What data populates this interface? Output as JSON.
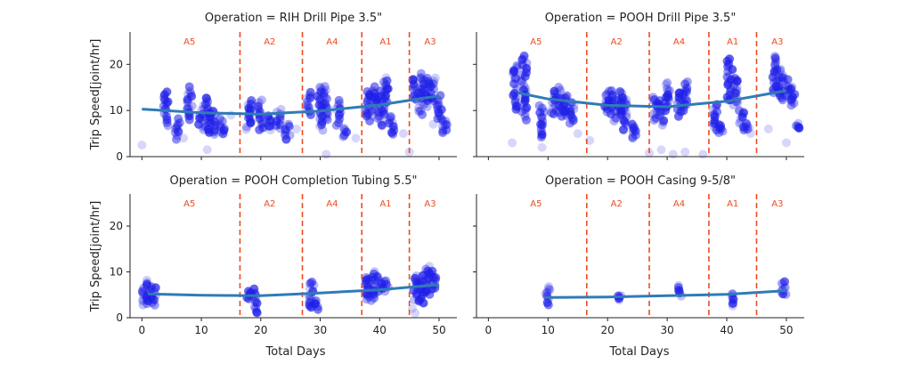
{
  "figure": {
    "ylabel": "Trip Speed[joint/hr]",
    "xlabel": "Total Days"
  },
  "chart_data": [
    {
      "type": "scatter",
      "title": "Operation = RIH Drill Pipe 3.5\"",
      "xlim": [
        -2,
        53
      ],
      "ylim": [
        0,
        27
      ],
      "xticks": [
        0,
        10,
        20,
        30,
        40,
        50
      ],
      "yticks": [
        0,
        10,
        20
      ],
      "regions": [
        {
          "label": "A5",
          "x": 8
        },
        {
          "label": "A2",
          "x": 21.5
        },
        {
          "label": "A4",
          "x": 32
        },
        {
          "label": "A1",
          "x": 41
        },
        {
          "label": "A3",
          "x": 48.5
        }
      ],
      "dividers": [
        16.5,
        27,
        37,
        45
      ],
      "trend": [
        [
          0,
          10.3
        ],
        [
          10,
          9.5
        ],
        [
          20,
          9.2
        ],
        [
          30,
          9.9
        ],
        [
          40,
          11.2
        ],
        [
          50,
          13.2
        ]
      ],
      "clusters": [
        {
          "x": 4,
          "ymin": 7,
          "ymax": 14
        },
        {
          "x": 6,
          "ymin": 4,
          "ymax": 8
        },
        {
          "x": 8,
          "ymin": 8,
          "ymax": 15
        },
        {
          "x": 10,
          "ymin": 6,
          "ymax": 11
        },
        {
          "x": 11,
          "ymin": 5,
          "ymax": 13
        },
        {
          "x": 12,
          "ymin": 5,
          "ymax": 10
        },
        {
          "x": 13.5,
          "ymin": 5,
          "ymax": 8
        },
        {
          "x": 18,
          "ymin": 6,
          "ymax": 12
        },
        {
          "x": 20,
          "ymin": 6,
          "ymax": 12
        },
        {
          "x": 21.5,
          "ymin": 6,
          "ymax": 9
        },
        {
          "x": 23,
          "ymin": 6,
          "ymax": 10
        },
        {
          "x": 24.5,
          "ymin": 4,
          "ymax": 7
        },
        {
          "x": 28,
          "ymin": 9,
          "ymax": 14
        },
        {
          "x": 30,
          "ymin": 6,
          "ymax": 15
        },
        {
          "x": 31,
          "ymin": 8,
          "ymax": 15
        },
        {
          "x": 33,
          "ymin": 7,
          "ymax": 12
        },
        {
          "x": 34,
          "ymin": 4,
          "ymax": 6
        },
        {
          "x": 38,
          "ymin": 8,
          "ymax": 14
        },
        {
          "x": 39,
          "ymin": 9,
          "ymax": 15
        },
        {
          "x": 40,
          "ymin": 7,
          "ymax": 14
        },
        {
          "x": 41,
          "ymin": 9,
          "ymax": 17
        },
        {
          "x": 42,
          "ymin": 5,
          "ymax": 9
        },
        {
          "x": 46,
          "ymin": 12,
          "ymax": 17
        },
        {
          "x": 47,
          "ymin": 9,
          "ymax": 18
        },
        {
          "x": 48,
          "ymin": 11,
          "ymax": 17
        },
        {
          "x": 49,
          "ymin": 12,
          "ymax": 17
        },
        {
          "x": 50,
          "ymin": 8,
          "ymax": 13
        },
        {
          "x": 51,
          "ymin": 5,
          "ymax": 8
        }
      ],
      "outliers": [
        [
          0,
          2.5
        ],
        [
          7,
          4
        ],
        [
          11,
          1.5
        ],
        [
          15,
          9
        ],
        [
          26,
          6
        ],
        [
          31,
          0.5
        ],
        [
          36,
          4
        ],
        [
          44,
          5
        ],
        [
          45,
          1
        ],
        [
          49,
          7
        ]
      ]
    },
    {
      "type": "scatter",
      "title": "Operation = POOH Drill Pipe 3.5\"",
      "xlim": [
        -2,
        53
      ],
      "ylim": [
        0,
        27
      ],
      "xticks": [
        0,
        10,
        20,
        30,
        40,
        50
      ],
      "yticks": [
        0,
        10,
        20
      ],
      "regions": [
        {
          "label": "A5",
          "x": 8
        },
        {
          "label": "A2",
          "x": 21.5
        },
        {
          "label": "A4",
          "x": 32
        },
        {
          "label": "A1",
          "x": 41
        },
        {
          "label": "A3",
          "x": 48.5
        }
      ],
      "dividers": [
        16.5,
        27,
        37,
        45
      ],
      "trend": [
        [
          5,
          13.8
        ],
        [
          10,
          12.5
        ],
        [
          20,
          11.1
        ],
        [
          30,
          10.8
        ],
        [
          40,
          12.0
        ],
        [
          50,
          14.3
        ]
      ],
      "clusters": [
        {
          "x": 4.5,
          "ymin": 10,
          "ymax": 20
        },
        {
          "x": 6,
          "ymin": 8,
          "ymax": 22
        },
        {
          "x": 9,
          "ymin": 4,
          "ymax": 11
        },
        {
          "x": 11,
          "ymin": 9,
          "ymax": 14
        },
        {
          "x": 12,
          "ymin": 9,
          "ymax": 15
        },
        {
          "x": 13,
          "ymin": 9,
          "ymax": 13
        },
        {
          "x": 14,
          "ymin": 7,
          "ymax": 12
        },
        {
          "x": 20,
          "ymin": 10,
          "ymax": 14
        },
        {
          "x": 21,
          "ymin": 8,
          "ymax": 14
        },
        {
          "x": 22,
          "ymin": 9,
          "ymax": 14
        },
        {
          "x": 23,
          "ymin": 6,
          "ymax": 13
        },
        {
          "x": 24.5,
          "ymin": 4,
          "ymax": 7
        },
        {
          "x": 28,
          "ymin": 8,
          "ymax": 13
        },
        {
          "x": 29,
          "ymin": 7,
          "ymax": 12
        },
        {
          "x": 30,
          "ymin": 10,
          "ymax": 16
        },
        {
          "x": 32,
          "ymin": 9,
          "ymax": 14
        },
        {
          "x": 33,
          "ymin": 10,
          "ymax": 16
        },
        {
          "x": 38,
          "ymin": 6,
          "ymax": 11
        },
        {
          "x": 39,
          "ymin": 5,
          "ymax": 7
        },
        {
          "x": 40.5,
          "ymin": 12,
          "ymax": 21
        },
        {
          "x": 41.5,
          "ymin": 11,
          "ymax": 17
        },
        {
          "x": 42.5,
          "ymin": 6,
          "ymax": 10
        },
        {
          "x": 43.5,
          "ymin": 6,
          "ymax": 7
        },
        {
          "x": 48,
          "ymin": 14,
          "ymax": 22
        },
        {
          "x": 49,
          "ymin": 12,
          "ymax": 19
        },
        {
          "x": 50,
          "ymin": 13,
          "ymax": 17
        },
        {
          "x": 51,
          "ymin": 11,
          "ymax": 15
        },
        {
          "x": 52,
          "ymin": 6,
          "ymax": 7
        }
      ],
      "outliers": [
        [
          4,
          3
        ],
        [
          9,
          2
        ],
        [
          15,
          5
        ],
        [
          17,
          3.5
        ],
        [
          27,
          0.8
        ],
        [
          29,
          1.5
        ],
        [
          31,
          0.5
        ],
        [
          33,
          1
        ],
        [
          36,
          0.5
        ],
        [
          44,
          5
        ],
        [
          47,
          6
        ],
        [
          50,
          3
        ]
      ]
    },
    {
      "type": "scatter",
      "title": "Operation = POOH Completion Tubing 5.5\"",
      "xlim": [
        -2,
        53
      ],
      "ylim": [
        0,
        27
      ],
      "xticks": [
        0,
        10,
        20,
        30,
        40,
        50
      ],
      "yticks": [
        0,
        10,
        20
      ],
      "regions": [
        {
          "label": "A5",
          "x": 8
        },
        {
          "label": "A2",
          "x": 21.5
        },
        {
          "label": "A4",
          "x": 32
        },
        {
          "label": "A1",
          "x": 41
        },
        {
          "label": "A3",
          "x": 48.5
        }
      ],
      "dividers": [
        16.5,
        27,
        37,
        45
      ],
      "trend": [
        [
          1,
          5.2
        ],
        [
          10,
          4.9
        ],
        [
          20,
          4.8
        ],
        [
          30,
          5.4
        ],
        [
          40,
          6.1
        ],
        [
          50,
          7.2
        ]
      ],
      "clusters": [
        {
          "x": 0.5,
          "ymin": 3,
          "ymax": 7
        },
        {
          "x": 1.2,
          "ymin": 3,
          "ymax": 8
        },
        {
          "x": 2,
          "ymin": 3,
          "ymax": 7
        },
        {
          "x": 18,
          "ymin": 4,
          "ymax": 6
        },
        {
          "x": 19,
          "ymin": 1,
          "ymax": 6
        },
        {
          "x": 28.5,
          "ymin": 2,
          "ymax": 8
        },
        {
          "x": 29.5,
          "ymin": 2,
          "ymax": 4
        },
        {
          "x": 38,
          "ymin": 4,
          "ymax": 9
        },
        {
          "x": 39,
          "ymin": 4,
          "ymax": 10
        },
        {
          "x": 40,
          "ymin": 6,
          "ymax": 9
        },
        {
          "x": 41,
          "ymin": 6,
          "ymax": 8
        },
        {
          "x": 46,
          "ymin": 4,
          "ymax": 9
        },
        {
          "x": 47,
          "ymin": 3,
          "ymax": 9
        },
        {
          "x": 48,
          "ymin": 5,
          "ymax": 11
        },
        {
          "x": 49,
          "ymin": 6,
          "ymax": 10
        }
      ],
      "outliers": [
        [
          46,
          1
        ],
        [
          45.5,
          2
        ],
        [
          38,
          4.5
        ]
      ]
    },
    {
      "type": "scatter",
      "title": "Operation = POOH Casing 9-5/8\"",
      "xlim": [
        -2,
        53
      ],
      "ylim": [
        0,
        27
      ],
      "xticks": [
        0,
        10,
        20,
        30,
        40,
        50
      ],
      "yticks": [
        0,
        10,
        20
      ],
      "regions": [
        {
          "label": "A5",
          "x": 8
        },
        {
          "label": "A2",
          "x": 21.5
        },
        {
          "label": "A4",
          "x": 32
        },
        {
          "label": "A1",
          "x": 41
        },
        {
          "label": "A3",
          "x": 48.5
        }
      ],
      "dividers": [
        16.5,
        27,
        37,
        45
      ],
      "trend": [
        [
          9.5,
          4.4
        ],
        [
          20,
          4.5
        ],
        [
          30,
          4.8
        ],
        [
          40,
          5.1
        ],
        [
          50,
          5.9
        ]
      ],
      "clusters": [
        {
          "x": 10,
          "ymin": 3,
          "ymax": 7
        },
        {
          "x": 22,
          "ymin": 4,
          "ymax": 5
        },
        {
          "x": 32,
          "ymin": 5,
          "ymax": 7
        },
        {
          "x": 41,
          "ymin": 3,
          "ymax": 5
        },
        {
          "x": 49.5,
          "ymin": 5,
          "ymax": 8
        }
      ],
      "outliers": [
        [
          41,
          2.5
        ]
      ]
    }
  ]
}
